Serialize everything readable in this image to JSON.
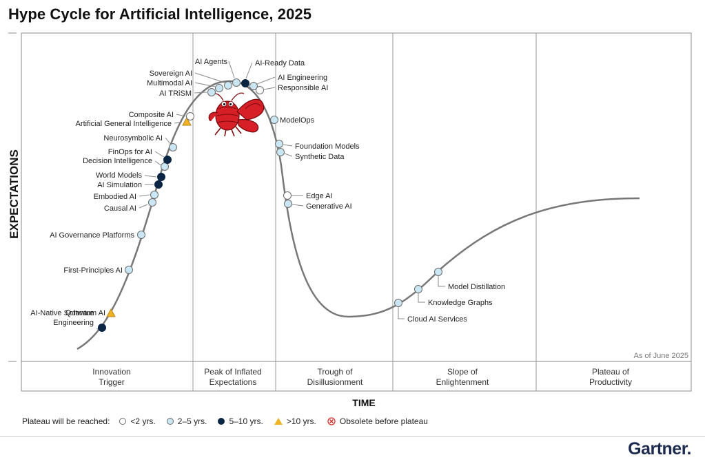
{
  "title": "Hype Cycle for Artificial Intelligence, 2025",
  "axes": {
    "y_title": "EXPECTATIONS",
    "x_title": "TIME"
  },
  "as_of": "As of June 2025",
  "phases": [
    {
      "line1": "Innovation",
      "line2": "Trigger"
    },
    {
      "line1": "Peak of Inflated",
      "line2": "Expectations"
    },
    {
      "line1": "Trough of",
      "line2": "Disillusionment"
    },
    {
      "line1": "Slope of",
      "line2": "Enlightenment"
    },
    {
      "line1": "Plateau of",
      "line2": "Productivity"
    }
  ],
  "legend": {
    "prefix": "Plateau will be reached:",
    "items": [
      {
        "key": "lt2",
        "label": "<2 yrs."
      },
      {
        "key": "2to5",
        "label": "2–5 yrs."
      },
      {
        "key": "5to10",
        "label": "5–10 yrs."
      },
      {
        "key": "gt10",
        "label": ">10 yrs."
      },
      {
        "key": "obsolete",
        "label": "Obsolete before plateau"
      }
    ]
  },
  "colors": {
    "lt2": "#ffffff",
    "2to5": "#c9e6f2",
    "5to10": "#0b2545",
    "gt10": "#f0b323",
    "obsolete": "#d0312d",
    "curve": "#777777",
    "mascot": "#d61f26"
  },
  "technologies": [
    {
      "name": "AI-Native Software Engineering",
      "lines": [
        "AI-Native Software",
        "Engineering"
      ],
      "category": "5to10"
    },
    {
      "name": "Quantum AI",
      "lines": [
        "Quantum AI"
      ],
      "category": "gt10"
    },
    {
      "name": "First-Principles AI",
      "lines": [
        "First-Principles AI"
      ],
      "category": "2to5"
    },
    {
      "name": "AI Governance Platforms",
      "lines": [
        "AI Governance Platforms"
      ],
      "category": "2to5"
    },
    {
      "name": "Causal AI",
      "lines": [
        "Causal AI"
      ],
      "category": "2to5"
    },
    {
      "name": "Embodied AI",
      "lines": [
        "Embodied AI"
      ],
      "category": "2to5"
    },
    {
      "name": "AI Simulation",
      "lines": [
        "AI Simulation"
      ],
      "category": "5to10"
    },
    {
      "name": "World Models",
      "lines": [
        "World Models"
      ],
      "category": "5to10"
    },
    {
      "name": "Decision Intelligence",
      "lines": [
        "Decision Intelligence"
      ],
      "category": "2to5"
    },
    {
      "name": "FinOps for AI",
      "lines": [
        "FinOps for AI"
      ],
      "category": "5to10"
    },
    {
      "name": "Neurosymbolic AI",
      "lines": [
        "Neurosymbolic AI"
      ],
      "category": "2to5"
    },
    {
      "name": "Artificial General Intelligence",
      "lines": [
        "Artificial General Intelligence"
      ],
      "category": "gt10"
    },
    {
      "name": "Composite AI",
      "lines": [
        "Composite AI"
      ],
      "category": "lt2"
    },
    {
      "name": "AI TRiSM",
      "lines": [
        "AI TRiSM"
      ],
      "category": "2to5"
    },
    {
      "name": "Multimodal AI",
      "lines": [
        "Multimodal AI"
      ],
      "category": "2to5"
    },
    {
      "name": "Sovereign AI",
      "lines": [
        "Sovereign AI"
      ],
      "category": "2to5"
    },
    {
      "name": "AI Agents",
      "lines": [
        "AI Agents"
      ],
      "category": "2to5"
    },
    {
      "name": "AI-Ready Data",
      "lines": [
        "AI-Ready Data"
      ],
      "category": "5to10"
    },
    {
      "name": "AI Engineering",
      "lines": [
        "AI Engineering"
      ],
      "category": "2to5"
    },
    {
      "name": "Responsible AI",
      "lines": [
        "Responsible AI"
      ],
      "category": "lt2"
    },
    {
      "name": "ModelOps",
      "lines": [
        "ModelOps"
      ],
      "category": "2to5"
    },
    {
      "name": "Foundation Models",
      "lines": [
        "Foundation Models"
      ],
      "category": "2to5"
    },
    {
      "name": "Synthetic Data",
      "lines": [
        "Synthetic Data"
      ],
      "category": "2to5"
    },
    {
      "name": "Edge AI",
      "lines": [
        "Edge AI"
      ],
      "category": "lt2"
    },
    {
      "name": "Generative AI",
      "lines": [
        "Generative AI"
      ],
      "category": "2to5"
    },
    {
      "name": "Cloud AI Services",
      "lines": [
        "Cloud AI Services"
      ],
      "category": "2to5"
    },
    {
      "name": "Knowledge Graphs",
      "lines": [
        "Knowledge Graphs"
      ],
      "category": "2to5"
    },
    {
      "name": "Model Distillation",
      "lines": [
        "Model Distillation"
      ],
      "category": "2to5"
    }
  ],
  "brand": "Gartner."
}
